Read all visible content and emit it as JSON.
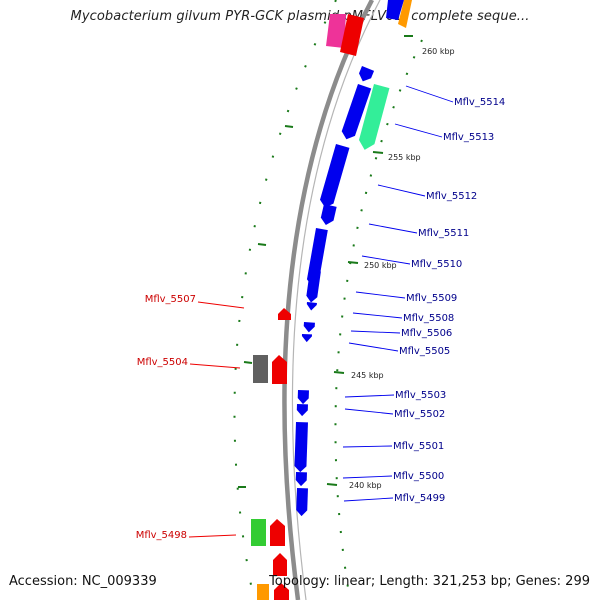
{
  "header": {
    "title": "Mycobacterium gilvum PYR-GCK plasmid pMFLV01, complete seque..."
  },
  "footer": {
    "accession": "Accession: NC_009339",
    "summary": "Topology: linear; Length: 321,253 bp; Genes: 299"
  },
  "ticks": [
    "260 kbp",
    "255 kbp",
    "250 kbp",
    "245 kbp",
    "240 kbp"
  ],
  "forward_genes": [
    "Mflv_5514",
    "Mflv_5513",
    "Mflv_5512",
    "Mflv_5511",
    "Mflv_5510",
    "Mflv_5509",
    "Mflv_5508",
    "Mflv_5506",
    "Mflv_5505",
    "Mflv_5503",
    "Mflv_5502",
    "Mflv_5501",
    "Mflv_5500",
    "Mflv_5499"
  ],
  "reverse_genes": [
    "Mflv_5507",
    "Mflv_5504",
    "Mflv_5498"
  ],
  "colors": {
    "forward": "#0000ee",
    "reverse": "#ee0000",
    "forward_label": "#00008b",
    "reverse_label": "#cc0000",
    "backbone": "#8c8c8c",
    "tick": "#1a7a1a",
    "gene_green_pale": "#33ee99",
    "gene_green": "#33cc33",
    "gene_grey": "#606060",
    "gene_pink": "#ee3399",
    "gene_orange": "#ff9900"
  }
}
